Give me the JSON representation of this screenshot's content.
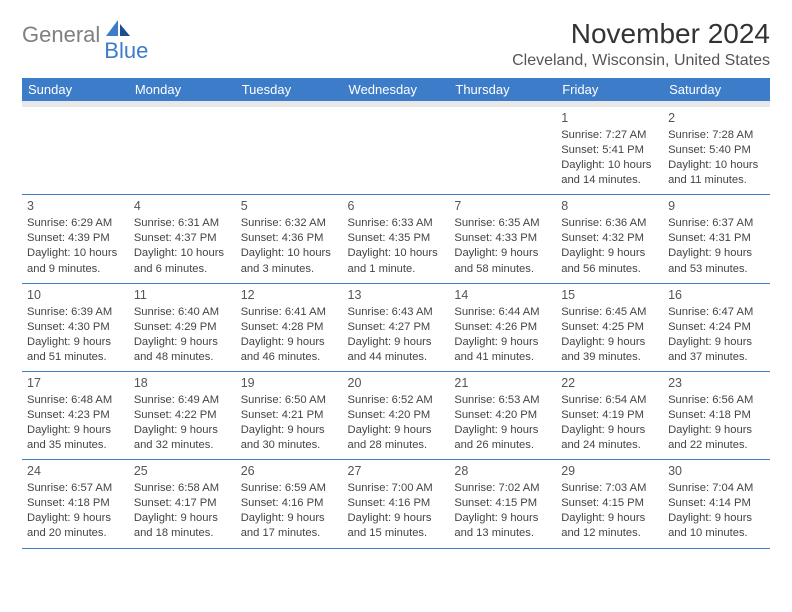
{
  "logo": {
    "text1": "General",
    "text2": "Blue"
  },
  "title": "November 2024",
  "location": "Cleveland, Wisconsin, United States",
  "colors": {
    "header_bg": "#3d7cc9",
    "header_text": "#ffffff",
    "subheader_bg": "#e8e8e8",
    "border": "#3d7cc9",
    "logo_gray": "#808080",
    "logo_blue": "#3d7cc9"
  },
  "day_headers": [
    "Sunday",
    "Monday",
    "Tuesday",
    "Wednesday",
    "Thursday",
    "Friday",
    "Saturday"
  ],
  "weeks": [
    [
      {
        "blank": true
      },
      {
        "blank": true
      },
      {
        "blank": true
      },
      {
        "blank": true
      },
      {
        "blank": true
      },
      {
        "n": "1",
        "sunrise": "7:27 AM",
        "sunset": "5:41 PM",
        "daylight": "10 hours and 14 minutes."
      },
      {
        "n": "2",
        "sunrise": "7:28 AM",
        "sunset": "5:40 PM",
        "daylight": "10 hours and 11 minutes."
      }
    ],
    [
      {
        "n": "3",
        "sunrise": "6:29 AM",
        "sunset": "4:39 PM",
        "daylight": "10 hours and 9 minutes."
      },
      {
        "n": "4",
        "sunrise": "6:31 AM",
        "sunset": "4:37 PM",
        "daylight": "10 hours and 6 minutes."
      },
      {
        "n": "5",
        "sunrise": "6:32 AM",
        "sunset": "4:36 PM",
        "daylight": "10 hours and 3 minutes."
      },
      {
        "n": "6",
        "sunrise": "6:33 AM",
        "sunset": "4:35 PM",
        "daylight": "10 hours and 1 minute."
      },
      {
        "n": "7",
        "sunrise": "6:35 AM",
        "sunset": "4:33 PM",
        "daylight": "9 hours and 58 minutes."
      },
      {
        "n": "8",
        "sunrise": "6:36 AM",
        "sunset": "4:32 PM",
        "daylight": "9 hours and 56 minutes."
      },
      {
        "n": "9",
        "sunrise": "6:37 AM",
        "sunset": "4:31 PM",
        "daylight": "9 hours and 53 minutes."
      }
    ],
    [
      {
        "n": "10",
        "sunrise": "6:39 AM",
        "sunset": "4:30 PM",
        "daylight": "9 hours and 51 minutes."
      },
      {
        "n": "11",
        "sunrise": "6:40 AM",
        "sunset": "4:29 PM",
        "daylight": "9 hours and 48 minutes."
      },
      {
        "n": "12",
        "sunrise": "6:41 AM",
        "sunset": "4:28 PM",
        "daylight": "9 hours and 46 minutes."
      },
      {
        "n": "13",
        "sunrise": "6:43 AM",
        "sunset": "4:27 PM",
        "daylight": "9 hours and 44 minutes."
      },
      {
        "n": "14",
        "sunrise": "6:44 AM",
        "sunset": "4:26 PM",
        "daylight": "9 hours and 41 minutes."
      },
      {
        "n": "15",
        "sunrise": "6:45 AM",
        "sunset": "4:25 PM",
        "daylight": "9 hours and 39 minutes."
      },
      {
        "n": "16",
        "sunrise": "6:47 AM",
        "sunset": "4:24 PM",
        "daylight": "9 hours and 37 minutes."
      }
    ],
    [
      {
        "n": "17",
        "sunrise": "6:48 AM",
        "sunset": "4:23 PM",
        "daylight": "9 hours and 35 minutes."
      },
      {
        "n": "18",
        "sunrise": "6:49 AM",
        "sunset": "4:22 PM",
        "daylight": "9 hours and 32 minutes."
      },
      {
        "n": "19",
        "sunrise": "6:50 AM",
        "sunset": "4:21 PM",
        "daylight": "9 hours and 30 minutes."
      },
      {
        "n": "20",
        "sunrise": "6:52 AM",
        "sunset": "4:20 PM",
        "daylight": "9 hours and 28 minutes."
      },
      {
        "n": "21",
        "sunrise": "6:53 AM",
        "sunset": "4:20 PM",
        "daylight": "9 hours and 26 minutes."
      },
      {
        "n": "22",
        "sunrise": "6:54 AM",
        "sunset": "4:19 PM",
        "daylight": "9 hours and 24 minutes."
      },
      {
        "n": "23",
        "sunrise": "6:56 AM",
        "sunset": "4:18 PM",
        "daylight": "9 hours and 22 minutes."
      }
    ],
    [
      {
        "n": "24",
        "sunrise": "6:57 AM",
        "sunset": "4:18 PM",
        "daylight": "9 hours and 20 minutes."
      },
      {
        "n": "25",
        "sunrise": "6:58 AM",
        "sunset": "4:17 PM",
        "daylight": "9 hours and 18 minutes."
      },
      {
        "n": "26",
        "sunrise": "6:59 AM",
        "sunset": "4:16 PM",
        "daylight": "9 hours and 17 minutes."
      },
      {
        "n": "27",
        "sunrise": "7:00 AM",
        "sunset": "4:16 PM",
        "daylight": "9 hours and 15 minutes."
      },
      {
        "n": "28",
        "sunrise": "7:02 AM",
        "sunset": "4:15 PM",
        "daylight": "9 hours and 13 minutes."
      },
      {
        "n": "29",
        "sunrise": "7:03 AM",
        "sunset": "4:15 PM",
        "daylight": "9 hours and 12 minutes."
      },
      {
        "n": "30",
        "sunrise": "7:04 AM",
        "sunset": "4:14 PM",
        "daylight": "9 hours and 10 minutes."
      }
    ]
  ]
}
